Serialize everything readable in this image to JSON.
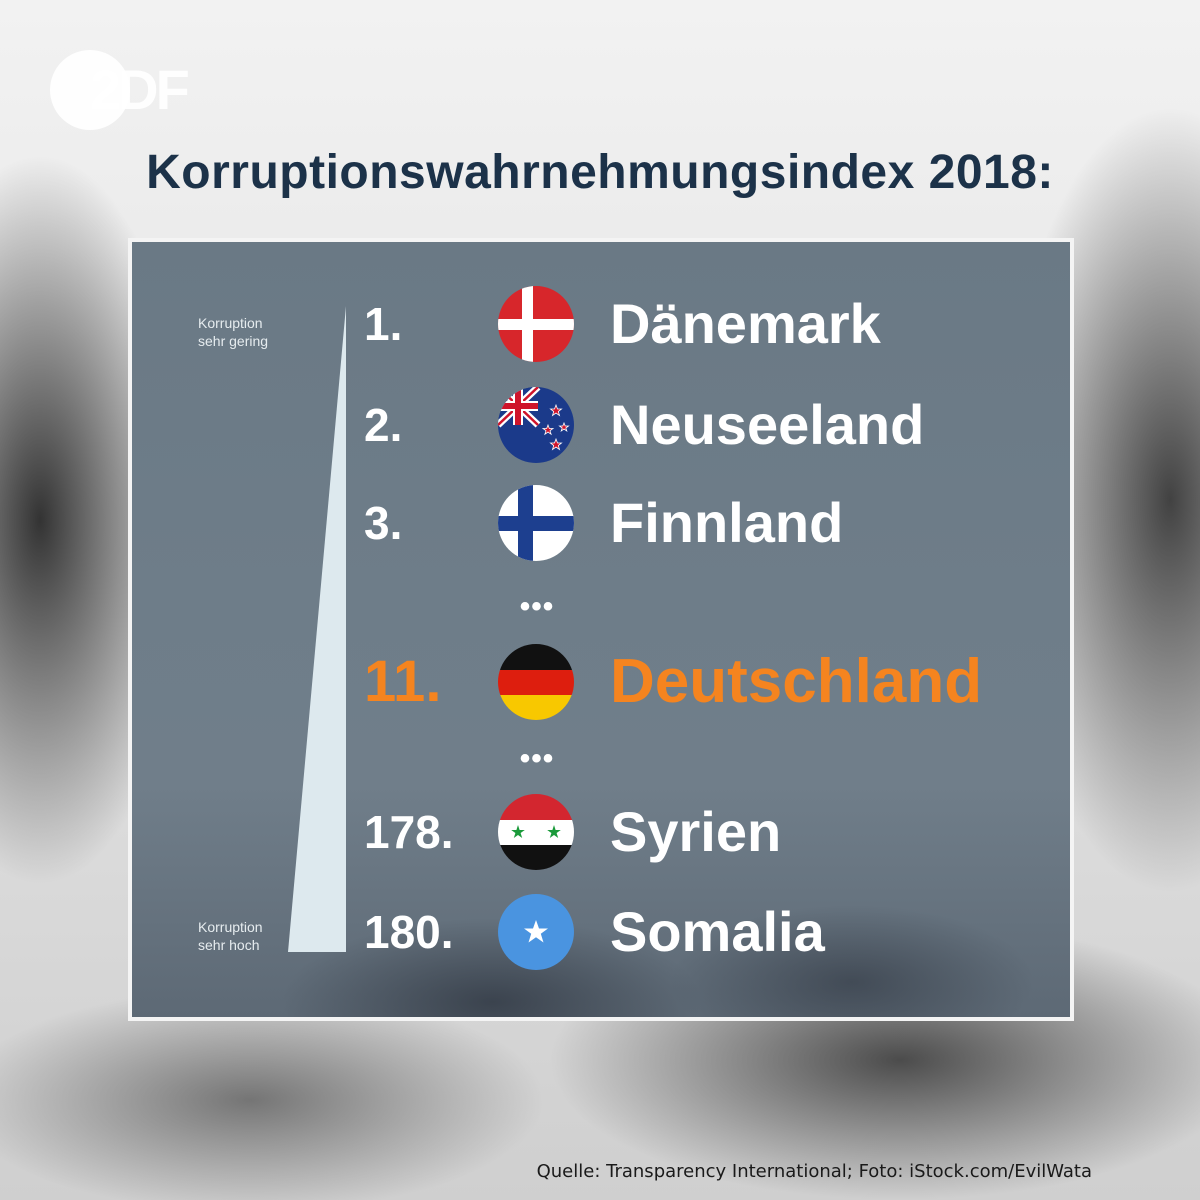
{
  "logo": {
    "text": "2DF"
  },
  "title": "Korruptionswahrnehmungsindex 2018:",
  "scale": {
    "top_label": [
      "Korruption",
      "sehr gering"
    ],
    "bottom_label": [
      "Korruption",
      "sehr hoch"
    ]
  },
  "ellipsis": "•••",
  "rankings": [
    {
      "rank": "1.",
      "country": "Dänemark",
      "flag": "denmark-flag-icon"
    },
    {
      "rank": "2.",
      "country": "Neuseeland",
      "flag": "new-zealand-flag-icon"
    },
    {
      "rank": "3.",
      "country": "Finnland",
      "flag": "finland-flag-icon"
    },
    {
      "rank": "11.",
      "country": "Deutschland",
      "flag": "germany-flag-icon",
      "highlighted": true
    },
    {
      "rank": "178.",
      "country": "Syrien",
      "flag": "syria-flag-icon"
    },
    {
      "rank": "180.",
      "country": "Somalia",
      "flag": "somalia-flag-icon"
    }
  ],
  "colors": {
    "title": "#1c3249",
    "highlight": "#f5841f",
    "panel": "#6e7d89"
  },
  "source": "Quelle: Transparency International; Foto: iStock.com/EvilWata"
}
